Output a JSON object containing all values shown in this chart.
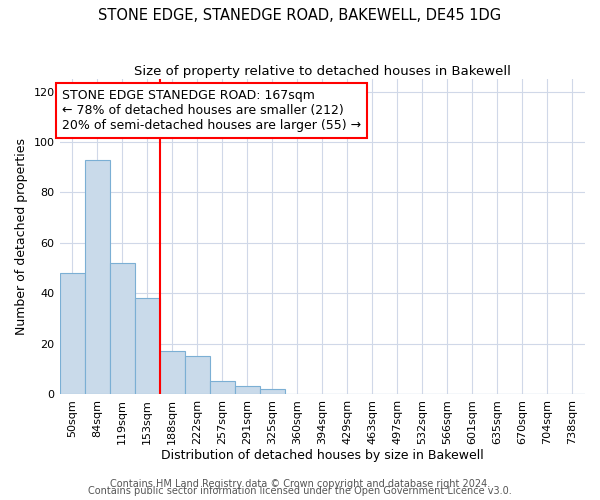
{
  "title": "STONE EDGE, STANEDGE ROAD, BAKEWELL, DE45 1DG",
  "subtitle": "Size of property relative to detached houses in Bakewell",
  "xlabel": "Distribution of detached houses by size in Bakewell",
  "ylabel": "Number of detached properties",
  "bar_labels": [
    "50sqm",
    "84sqm",
    "119sqm",
    "153sqm",
    "188sqm",
    "222sqm",
    "257sqm",
    "291sqm",
    "325sqm",
    "360sqm",
    "394sqm",
    "429sqm",
    "463sqm",
    "497sqm",
    "532sqm",
    "566sqm",
    "601sqm",
    "635sqm",
    "670sqm",
    "704sqm",
    "738sqm"
  ],
  "bar_values": [
    48,
    93,
    52,
    38,
    17,
    15,
    5,
    3,
    2,
    0,
    0,
    0,
    0,
    0,
    0,
    0,
    0,
    0,
    0,
    0,
    0
  ],
  "bar_color": "#c9daea",
  "bar_edge_color": "#7bafd4",
  "ylim": [
    0,
    125
  ],
  "yticks": [
    0,
    20,
    40,
    60,
    80,
    100,
    120
  ],
  "annotation_title": "STONE EDGE STANEDGE ROAD: 167sqm",
  "annotation_line2": "← 78% of detached houses are smaller (212)",
  "annotation_line3": "20% of semi-detached houses are larger (55) →",
  "footer_line1": "Contains HM Land Registry data © Crown copyright and database right 2024.",
  "footer_line2": "Contains public sector information licensed under the Open Government Licence v3.0.",
  "background_color": "#ffffff",
  "grid_color": "#d0d8e8",
  "title_fontsize": 10.5,
  "subtitle_fontsize": 9.5,
  "axis_label_fontsize": 9,
  "tick_fontsize": 8,
  "footer_fontsize": 7,
  "annotation_fontsize": 9
}
